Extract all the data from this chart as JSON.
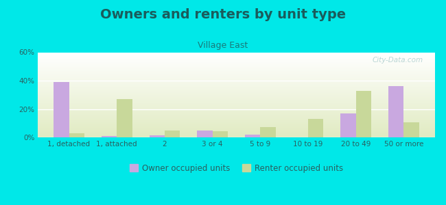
{
  "title": "Owners and renters by unit type",
  "subtitle": "Village East",
  "categories": [
    "1, detached",
    "1, attached",
    "2",
    "3 or 4",
    "5 to 9",
    "10 to 19",
    "20 to 49",
    "50 or more"
  ],
  "owner_values": [
    39,
    1,
    1.5,
    5,
    2,
    0,
    17,
    36
  ],
  "renter_values": [
    3,
    27,
    5,
    4.5,
    7,
    13,
    33,
    10.5
  ],
  "owner_color": "#c9a8e0",
  "renter_color": "#c8d89a",
  "bg_color": "#00e8e8",
  "ylim": [
    0,
    60
  ],
  "yticks": [
    0,
    20,
    40,
    60
  ],
  "ytick_labels": [
    "0%",
    "20%",
    "40%",
    "60%"
  ],
  "legend_owner": "Owner occupied units",
  "legend_renter": "Renter occupied units",
  "title_fontsize": 14,
  "subtitle_fontsize": 9,
  "tick_fontsize": 7.5,
  "legend_fontsize": 8.5,
  "title_color": "#1a5c5c",
  "subtitle_color": "#1a7a7a",
  "tick_color": "#2a6060"
}
